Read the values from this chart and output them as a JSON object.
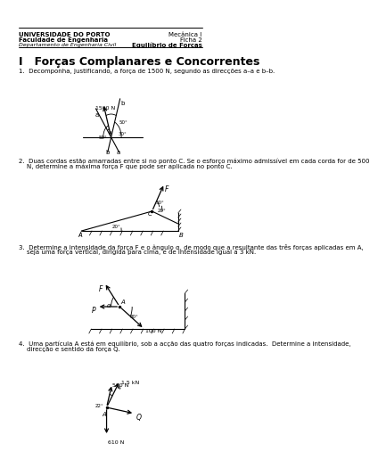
{
  "title": "I   Forças Complanares e Concorrentes",
  "header_left_1": "UNIVERSIDADE DO PORTO",
  "header_left_2": "Faculdade de Engenharia",
  "header_left_3": "Departamento de Engenharia Civil",
  "header_right_1": "Mecânica I",
  "header_right_2": "Ficha 2",
  "header_right_3": "Equilíbrio de Forças",
  "q1_text": "1.  Decomponha, justificando, a força de 1500 N, segundo as direcções a–a e b–b.",
  "q2_text_1": "2.  Duas cordas estão amarradas entre si no ponto C. Se o esforço máximo admissível em cada corda for de 500",
  "q2_text_2": "    N, determine a máxima força F que pode ser aplicada no ponto C.",
  "q3_text_1": "3.  Determine a intensidade da força F e o ângulo α, de modo que a resultante das três forças aplicadas em A,",
  "q3_text_2": "    seja uma força vertical, dirigida para cima, e de intensidade igual a 3 kN.",
  "q4_text_1": "4.  Uma partícula A está em equilíbrio, sob a acção das quatro forças indicadas.  Determine a intensidade,",
  "q4_text_2": "    direcção e sentido da força Q.",
  "bg_color": "#ffffff"
}
